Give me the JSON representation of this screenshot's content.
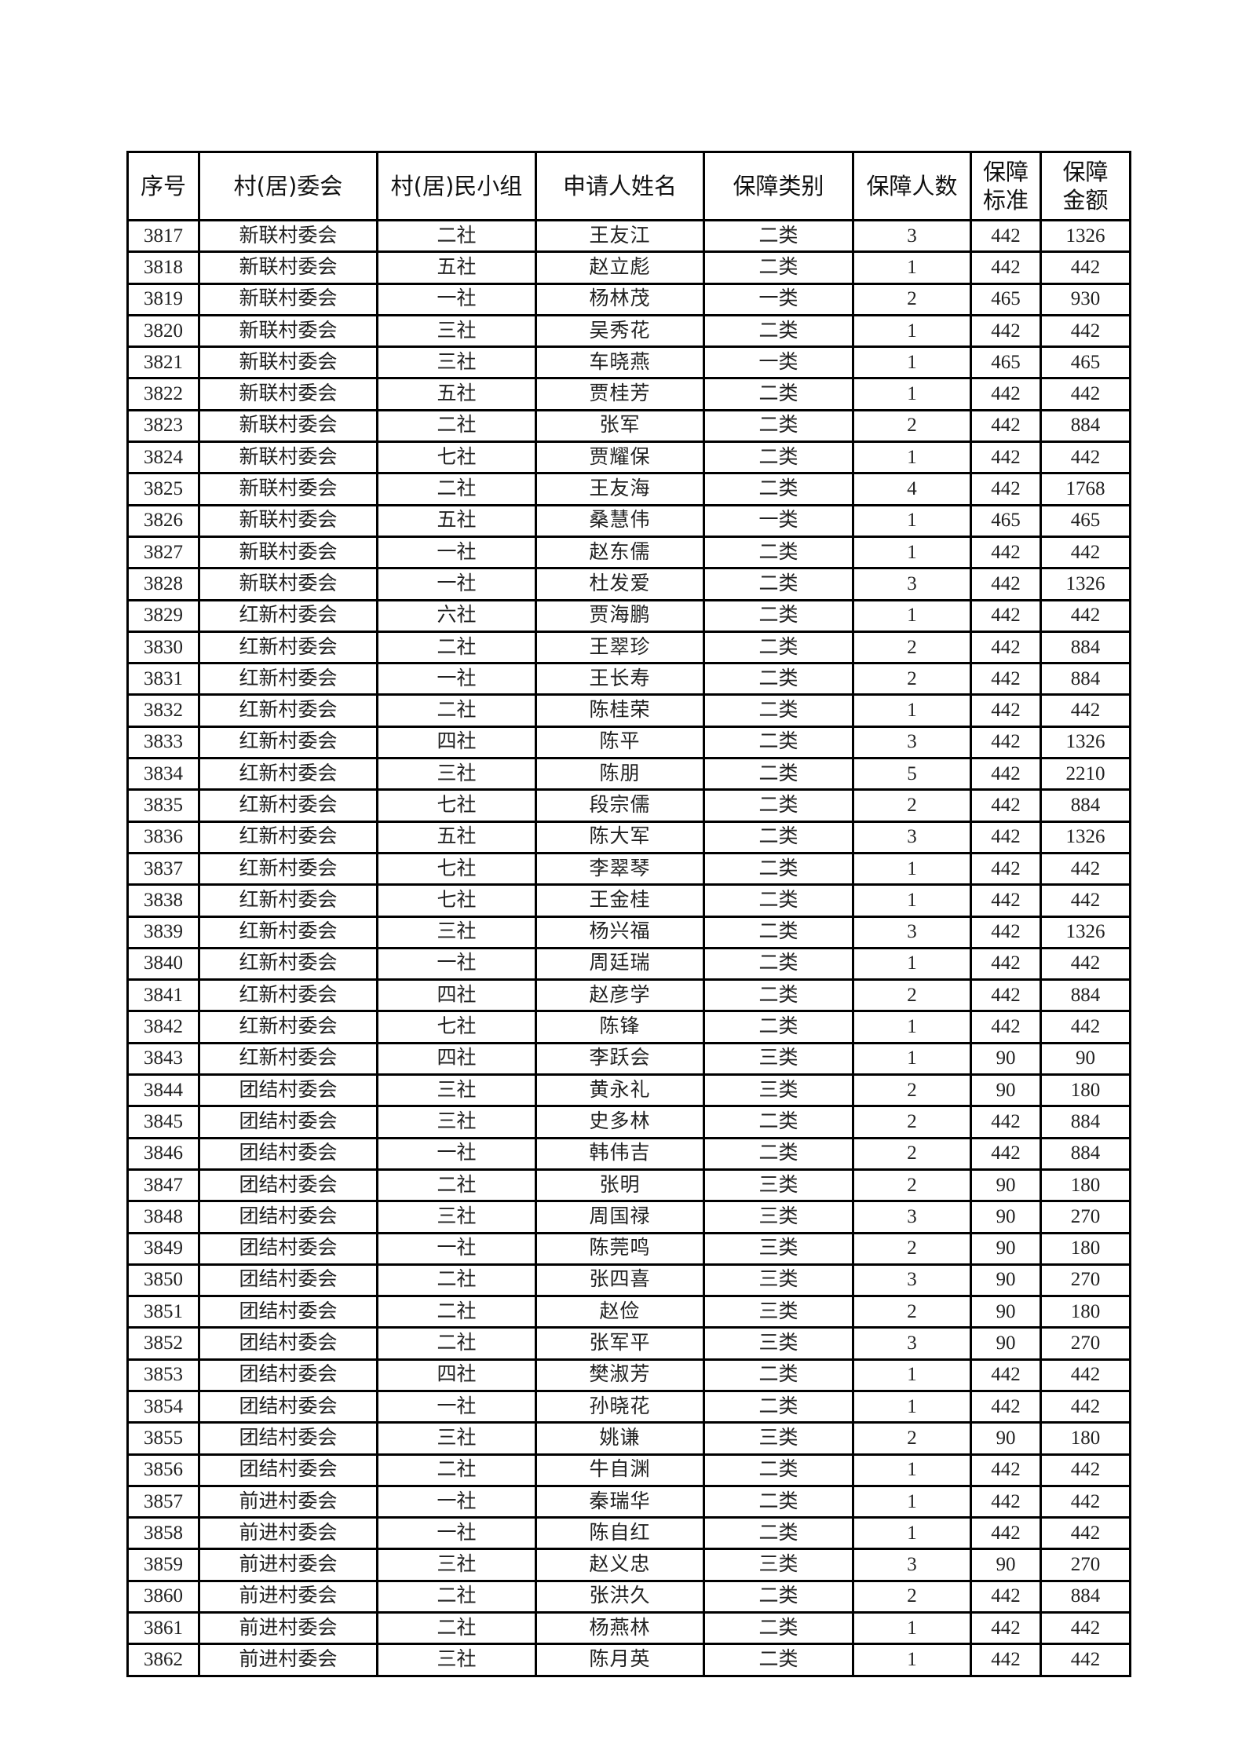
{
  "table": {
    "headers": [
      "序号",
      "村(居)委会",
      "村(居)民小组",
      "申请人姓名",
      "保障类别",
      "保障人数",
      "保障\n标准",
      "保障\n金额"
    ],
    "rows": [
      [
        "3817",
        "新联村委会",
        "二社",
        "王友江",
        "二类",
        "3",
        "442",
        "1326"
      ],
      [
        "3818",
        "新联村委会",
        "五社",
        "赵立彪",
        "二类",
        "1",
        "442",
        "442"
      ],
      [
        "3819",
        "新联村委会",
        "一社",
        "杨林茂",
        "一类",
        "2",
        "465",
        "930"
      ],
      [
        "3820",
        "新联村委会",
        "三社",
        "吴秀花",
        "二类",
        "1",
        "442",
        "442"
      ],
      [
        "3821",
        "新联村委会",
        "三社",
        "车晓燕",
        "一类",
        "1",
        "465",
        "465"
      ],
      [
        "3822",
        "新联村委会",
        "五社",
        "贾桂芳",
        "二类",
        "1",
        "442",
        "442"
      ],
      [
        "3823",
        "新联村委会",
        "二社",
        "张军",
        "二类",
        "2",
        "442",
        "884"
      ],
      [
        "3824",
        "新联村委会",
        "七社",
        "贾耀保",
        "二类",
        "1",
        "442",
        "442"
      ],
      [
        "3825",
        "新联村委会",
        "二社",
        "王友海",
        "二类",
        "4",
        "442",
        "1768"
      ],
      [
        "3826",
        "新联村委会",
        "五社",
        "桑慧伟",
        "一类",
        "1",
        "465",
        "465"
      ],
      [
        "3827",
        "新联村委会",
        "一社",
        "赵东儒",
        "二类",
        "1",
        "442",
        "442"
      ],
      [
        "3828",
        "新联村委会",
        "一社",
        "杜发爱",
        "二类",
        "3",
        "442",
        "1326"
      ],
      [
        "3829",
        "红新村委会",
        "六社",
        "贾海鹏",
        "二类",
        "1",
        "442",
        "442"
      ],
      [
        "3830",
        "红新村委会",
        "二社",
        "王翠珍",
        "二类",
        "2",
        "442",
        "884"
      ],
      [
        "3831",
        "红新村委会",
        "一社",
        "王长寿",
        "二类",
        "2",
        "442",
        "884"
      ],
      [
        "3832",
        "红新村委会",
        "二社",
        "陈桂荣",
        "二类",
        "1",
        "442",
        "442"
      ],
      [
        "3833",
        "红新村委会",
        "四社",
        "陈平",
        "二类",
        "3",
        "442",
        "1326"
      ],
      [
        "3834",
        "红新村委会",
        "三社",
        "陈朋",
        "二类",
        "5",
        "442",
        "2210"
      ],
      [
        "3835",
        "红新村委会",
        "七社",
        "段宗儒",
        "二类",
        "2",
        "442",
        "884"
      ],
      [
        "3836",
        "红新村委会",
        "五社",
        "陈大军",
        "二类",
        "3",
        "442",
        "1326"
      ],
      [
        "3837",
        "红新村委会",
        "七社",
        "李翠琴",
        "二类",
        "1",
        "442",
        "442"
      ],
      [
        "3838",
        "红新村委会",
        "七社",
        "王金桂",
        "二类",
        "1",
        "442",
        "442"
      ],
      [
        "3839",
        "红新村委会",
        "三社",
        "杨兴福",
        "二类",
        "3",
        "442",
        "1326"
      ],
      [
        "3840",
        "红新村委会",
        "一社",
        "周廷瑞",
        "二类",
        "1",
        "442",
        "442"
      ],
      [
        "3841",
        "红新村委会",
        "四社",
        "赵彦学",
        "二类",
        "2",
        "442",
        "884"
      ],
      [
        "3842",
        "红新村委会",
        "七社",
        "陈锋",
        "二类",
        "1",
        "442",
        "442"
      ],
      [
        "3843",
        "红新村委会",
        "四社",
        "李跃会",
        "三类",
        "1",
        "90",
        "90"
      ],
      [
        "3844",
        "团结村委会",
        "三社",
        "黄永礼",
        "三类",
        "2",
        "90",
        "180"
      ],
      [
        "3845",
        "团结村委会",
        "三社",
        "史多林",
        "二类",
        "2",
        "442",
        "884"
      ],
      [
        "3846",
        "团结村委会",
        "一社",
        "韩伟吉",
        "二类",
        "2",
        "442",
        "884"
      ],
      [
        "3847",
        "团结村委会",
        "二社",
        "张明",
        "三类",
        "2",
        "90",
        "180"
      ],
      [
        "3848",
        "团结村委会",
        "三社",
        "周国禄",
        "三类",
        "3",
        "90",
        "270"
      ],
      [
        "3849",
        "团结村委会",
        "一社",
        "陈莞鸣",
        "三类",
        "2",
        "90",
        "180"
      ],
      [
        "3850",
        "团结村委会",
        "二社",
        "张四喜",
        "三类",
        "3",
        "90",
        "270"
      ],
      [
        "3851",
        "团结村委会",
        "二社",
        "赵俭",
        "三类",
        "2",
        "90",
        "180"
      ],
      [
        "3852",
        "团结村委会",
        "二社",
        "张军平",
        "三类",
        "3",
        "90",
        "270"
      ],
      [
        "3853",
        "团结村委会",
        "四社",
        "樊淑芳",
        "二类",
        "1",
        "442",
        "442"
      ],
      [
        "3854",
        "团结村委会",
        "一社",
        "孙晓花",
        "二类",
        "1",
        "442",
        "442"
      ],
      [
        "3855",
        "团结村委会",
        "三社",
        "姚谦",
        "三类",
        "2",
        "90",
        "180"
      ],
      [
        "3856",
        "团结村委会",
        "二社",
        "牛自渊",
        "二类",
        "1",
        "442",
        "442"
      ],
      [
        "3857",
        "前进村委会",
        "一社",
        "秦瑞华",
        "二类",
        "1",
        "442",
        "442"
      ],
      [
        "3858",
        "前进村委会",
        "一社",
        "陈自红",
        "二类",
        "1",
        "442",
        "442"
      ],
      [
        "3859",
        "前进村委会",
        "三社",
        "赵义忠",
        "三类",
        "3",
        "90",
        "270"
      ],
      [
        "3860",
        "前进村委会",
        "二社",
        "张洪久",
        "二类",
        "2",
        "442",
        "884"
      ],
      [
        "3861",
        "前进村委会",
        "二社",
        "杨燕林",
        "二类",
        "1",
        "442",
        "442"
      ],
      [
        "3862",
        "前进村委会",
        "三社",
        "陈月英",
        "二类",
        "1",
        "442",
        "442"
      ]
    ]
  }
}
